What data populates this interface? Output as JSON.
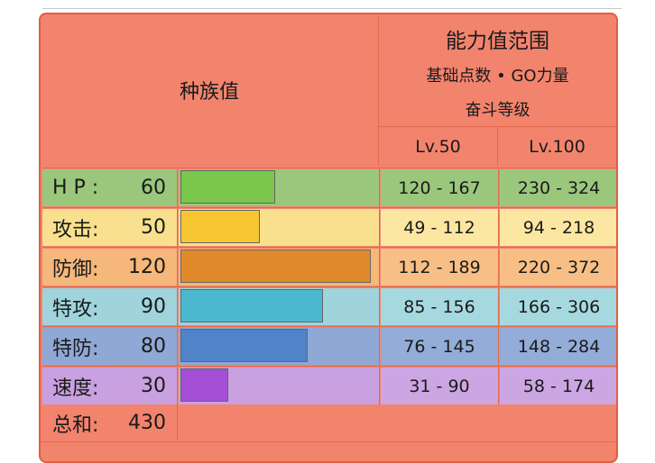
{
  "header": {
    "base_stats": "种族值",
    "stat_range": "能力值范围",
    "subtitle1": "基础点数 • GO力量",
    "subtitle2": "奋斗等级",
    "lv50": "Lv.50",
    "lv100": "Lv.100"
  },
  "colors": {
    "header_bg": "#f2846e",
    "border": "#e26a4c"
  },
  "stats": [
    {
      "label": "H P :",
      "value": "60",
      "bar_fraction": 0.235,
      "lv50": "120 - 167",
      "lv100": "230 - 324",
      "row_color": "#9ac77c",
      "cell_color": "#9ac77c",
      "bar_color": "#7ac74c"
    },
    {
      "label": "攻击:",
      "value": "50",
      "bar_fraction": 0.196,
      "lv50": "49 - 112",
      "lv100": "94 - 218",
      "row_color": "#f9e08e",
      "cell_color": "#fbe7a1",
      "bar_color": "#f7c731"
    },
    {
      "label": "防御:",
      "value": "120",
      "bar_fraction": 0.471,
      "lv50": "112 - 189",
      "lv100": "220 - 372",
      "row_color": "#f5b77a",
      "cell_color": "#f7bf86",
      "bar_color": "#e08a2b"
    },
    {
      "label": "特攻:",
      "value": "90",
      "bar_fraction": 0.353,
      "lv50": "85 - 156",
      "lv100": "166 - 306",
      "row_color": "#9fd4dc",
      "cell_color": "#a6d8df",
      "bar_color": "#4cb8d0"
    },
    {
      "label": "特防:",
      "value": "80",
      "bar_fraction": 0.314,
      "lv50": "76 - 145",
      "lv100": "148 - 284",
      "row_color": "#8fa8d6",
      "cell_color": "#93acd8",
      "bar_color": "#5083c9"
    },
    {
      "label": "速度:",
      "value": "30",
      "bar_fraction": 0.118,
      "lv50": "31 - 90",
      "lv100": "58 - 174",
      "row_color": "#c9a0e0",
      "cell_color": "#cca6e2",
      "bar_color": "#a44fd6"
    }
  ],
  "total": {
    "label": "总和:",
    "value": "430"
  }
}
